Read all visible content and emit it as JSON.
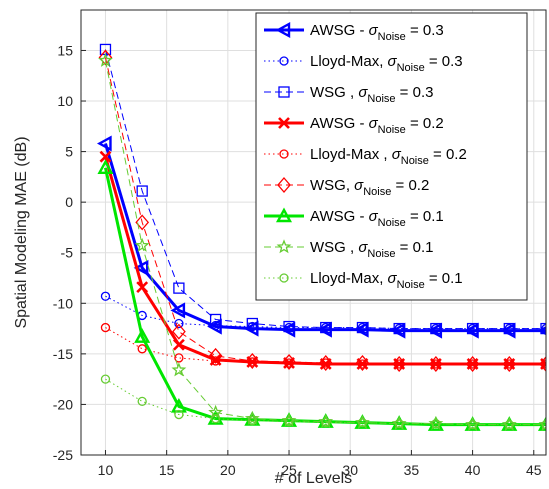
{
  "chart_data": {
    "type": "line",
    "xlabel": "# of Levels",
    "ylabel": "Spatial Modeling MAE (dB)",
    "xlim": [
      8,
      46
    ],
    "ylim": [
      -25,
      19
    ],
    "xticks": [
      10,
      15,
      20,
      25,
      30,
      35,
      40,
      45
    ],
    "yticks": [
      -25,
      -20,
      -15,
      -10,
      -5,
      0,
      5,
      10,
      15
    ],
    "grid": true,
    "legend_position": "top-right",
    "series": [
      {
        "name_prefix": "AWSG - ",
        "name_sigma": "σ",
        "name_sub": "Noise",
        "name_suffix": " = 0.3",
        "color": "#0000ff",
        "line_style": "solid",
        "line_width": 3,
        "marker": "triangle-left",
        "x": [
          10,
          13,
          16,
          19,
          22,
          25,
          28,
          31,
          34,
          37,
          40,
          43,
          46
        ],
        "y": [
          5.8,
          -6.5,
          -10.7,
          -12.3,
          -12.5,
          -12.6,
          -12.6,
          -12.6,
          -12.7,
          -12.7,
          -12.7,
          -12.7,
          -12.7
        ]
      },
      {
        "name_prefix": "Lloyd-Max, ",
        "name_sigma": "σ",
        "name_sub": "Noise",
        "name_suffix": " = 0.3",
        "color": "#0000ff",
        "line_style": "dotted",
        "line_width": 1,
        "marker": "circle",
        "x": [
          10,
          13,
          16,
          19,
          22,
          25,
          28,
          31,
          34,
          37,
          40,
          43,
          46
        ],
        "y": [
          -9.3,
          -11.2,
          -12.0,
          -12.2,
          -12.3,
          -12.4,
          -12.4,
          -12.4,
          -12.5,
          -12.5,
          -12.5,
          -12.5,
          -12.5
        ]
      },
      {
        "name_prefix": "WSG , ",
        "name_sigma": "σ",
        "name_sub": "Noise",
        "name_suffix": " = 0.3",
        "color": "#0000ff",
        "line_style": "dashed",
        "line_width": 1,
        "marker": "square",
        "x": [
          10,
          13,
          16,
          19,
          22,
          25,
          28,
          31,
          34,
          37,
          40,
          43,
          46
        ],
        "y": [
          15.1,
          1.1,
          -8.5,
          -11.6,
          -12.0,
          -12.3,
          -12.4,
          -12.4,
          -12.5,
          -12.5,
          -12.5,
          -12.5,
          -12.5
        ]
      },
      {
        "name_prefix": "AWSG - ",
        "name_sigma": "σ",
        "name_sub": "Noise",
        "name_suffix": " = 0.2",
        "color": "#ff0000",
        "line_style": "solid",
        "line_width": 3,
        "marker": "x",
        "x": [
          10,
          13,
          16,
          19,
          22,
          25,
          28,
          31,
          34,
          37,
          40,
          43,
          46
        ],
        "y": [
          4.5,
          -8.4,
          -14.1,
          -15.6,
          -15.8,
          -15.9,
          -16.0,
          -16.0,
          -16.0,
          -16.0,
          -16.0,
          -16.0,
          -16.0
        ]
      },
      {
        "name_prefix": "Lloyd-Max , ",
        "name_sigma": "σ",
        "name_sub": "Noise",
        "name_suffix": " = 0.2",
        "color": "#ff0000",
        "line_style": "dotted",
        "line_width": 1,
        "marker": "circle",
        "x": [
          10,
          13,
          16,
          19,
          22,
          25,
          28,
          31,
          34,
          37,
          40,
          43,
          46
        ],
        "y": [
          -12.4,
          -14.5,
          -15.4,
          -15.7,
          -15.8,
          -15.9,
          -15.9,
          -16.0,
          -16.0,
          -16.0,
          -16.0,
          -16.0,
          -16.0
        ]
      },
      {
        "name_prefix": "WSG, ",
        "name_sigma": "σ",
        "name_sub": "Noise",
        "name_suffix": " = 0.2",
        "color": "#ff0000",
        "line_style": "dashed",
        "line_width": 1,
        "marker": "diamond",
        "x": [
          10,
          13,
          16,
          19,
          22,
          25,
          28,
          31,
          34,
          37,
          40,
          43,
          46
        ],
        "y": [
          14.3,
          -2.0,
          -12.8,
          -15.2,
          -15.7,
          -15.8,
          -15.9,
          -15.9,
          -16.0,
          -16.0,
          -16.0,
          -16.0,
          -16.0
        ]
      },
      {
        "name_prefix": "AWSG - ",
        "name_sigma": "σ",
        "name_sub": "Noise",
        "name_suffix": " = 0.1",
        "color": "#00e600",
        "line_style": "solid",
        "line_width": 3,
        "marker": "triangle-up",
        "x": [
          10,
          13,
          16,
          19,
          22,
          25,
          28,
          31,
          34,
          37,
          40,
          43,
          46
        ],
        "y": [
          3.4,
          -13.3,
          -20.2,
          -21.4,
          -21.5,
          -21.6,
          -21.7,
          -21.8,
          -21.9,
          -22.0,
          -22.0,
          -22.0,
          -22.0
        ]
      },
      {
        "name_prefix": "WSG , ",
        "name_sigma": "σ",
        "name_sub": "Noise",
        "name_suffix": " = 0.1",
        "color": "#66cc33",
        "line_style": "dashed",
        "line_width": 1,
        "marker": "star",
        "x": [
          10,
          13,
          16,
          19,
          22,
          25,
          28,
          31,
          34,
          37,
          40,
          43,
          46
        ],
        "y": [
          14.0,
          -4.3,
          -16.6,
          -20.8,
          -21.4,
          -21.6,
          -21.7,
          -21.8,
          -21.9,
          -21.9,
          -22.0,
          -22.0,
          -22.0
        ]
      },
      {
        "name_prefix": "Lloyd-Max, ",
        "name_sigma": "σ",
        "name_sub": "Noise",
        "name_suffix": " = 0.1",
        "color": "#66cc33",
        "line_style": "dotted",
        "line_width": 1,
        "marker": "circle",
        "x": [
          10,
          13,
          16,
          19,
          22,
          25,
          28,
          31,
          34,
          37,
          40,
          43,
          46
        ],
        "y": [
          -17.5,
          -19.7,
          -21.0,
          -21.4,
          -21.6,
          -21.7,
          -21.8,
          -21.8,
          -21.9,
          -21.9,
          -22.0,
          -22.0,
          -22.0
        ]
      }
    ]
  }
}
